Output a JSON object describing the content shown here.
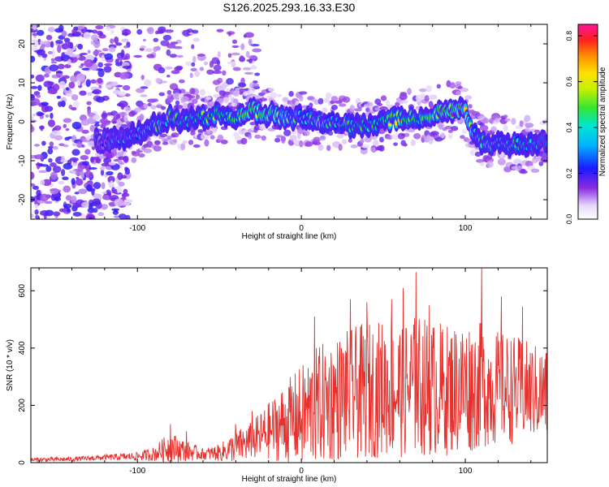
{
  "title": "S126.2025.293.16.33.E30",
  "chart_data": [
    {
      "type": "heatmap",
      "xlabel": "Height of straight line (km)",
      "ylabel": "Frequency (Hz)",
      "xlim": [
        -165,
        150
      ],
      "ylim": [
        -25,
        25
      ],
      "xticks": [
        -100,
        0,
        100
      ],
      "yticks": [
        -20,
        -10,
        0,
        10,
        20
      ],
      "colorbar": {
        "label": "Normalized spectral amplitude",
        "range": [
          0.0,
          0.85
        ],
        "ticks": [
          "0.0",
          "0.2",
          "0.4",
          "0.6",
          "0.8"
        ]
      },
      "ridge": {
        "description": "Dominant frequency ridge vs height",
        "x": [
          -120,
          -110,
          -100,
          -90,
          -80,
          -70,
          -60,
          -50,
          -40,
          -30,
          -20,
          -10,
          0,
          10,
          20,
          30,
          40,
          50,
          60,
          70,
          80,
          90,
          100,
          105,
          110,
          115,
          120,
          130,
          140,
          148
        ],
        "freq": [
          -5,
          -4,
          -3,
          -1,
          1,
          0,
          1,
          2,
          1,
          3,
          2,
          1,
          1,
          0,
          0,
          -1,
          -1,
          0,
          1,
          1,
          2,
          3,
          3,
          -3,
          -5,
          -6,
          -5,
          -6,
          -6,
          -5
        ],
        "amp": [
          0.25,
          0.35,
          0.45,
          0.5,
          0.55,
          0.4,
          0.5,
          0.55,
          0.6,
          0.8,
          0.7,
          0.6,
          0.55,
          0.55,
          0.5,
          0.5,
          0.45,
          0.55,
          0.6,
          0.55,
          0.7,
          0.8,
          0.85,
          0.5,
          0.45,
          0.5,
          0.4,
          0.45,
          0.4,
          0.35
        ]
      }
    },
    {
      "type": "line",
      "xlabel": "Height of straight line (km)",
      "ylabel": "SNR (10 * v/v)",
      "xlim": [
        -165,
        150
      ],
      "ylim": [
        0,
        680
      ],
      "xticks": [
        -100,
        0,
        100
      ],
      "yticks": [
        0,
        200,
        400,
        600
      ],
      "series": [
        {
          "name": "SNR",
          "color": "#e8302c",
          "envelope_x": [
            -165,
            -140,
            -120,
            -100,
            -90,
            -80,
            -70,
            -60,
            -50,
            -40,
            -30,
            -20,
            -10,
            0,
            10,
            20,
            30,
            40,
            50,
            60,
            70,
            80,
            90,
            100,
            110,
            120,
            130,
            140,
            150
          ],
          "envelope_base": [
            10,
            12,
            18,
            22,
            30,
            55,
            40,
            30,
            35,
            55,
            75,
            110,
            140,
            160,
            200,
            220,
            240,
            250,
            260,
            255,
            270,
            260,
            255,
            265,
            270,
            260,
            255,
            250,
            240
          ],
          "envelope_amp": [
            8,
            8,
            10,
            15,
            25,
            55,
            35,
            20,
            30,
            55,
            70,
            100,
            140,
            180,
            210,
            220,
            230,
            240,
            240,
            240,
            250,
            240,
            230,
            240,
            220,
            200,
            190,
            170,
            160
          ],
          "peaks": [
            [
              -80,
              135
            ],
            [
              -70,
              110
            ],
            [
              -40,
              135
            ],
            [
              -30,
              180
            ],
            [
              8,
              510
            ],
            [
              30,
              570
            ],
            [
              40,
              560
            ],
            [
              55,
              570
            ],
            [
              62,
              610
            ],
            [
              70,
              665
            ],
            [
              78,
              550
            ],
            [
              110,
              680
            ],
            [
              122,
              580
            ],
            [
              135,
              545
            ]
          ]
        }
      ]
    }
  ]
}
